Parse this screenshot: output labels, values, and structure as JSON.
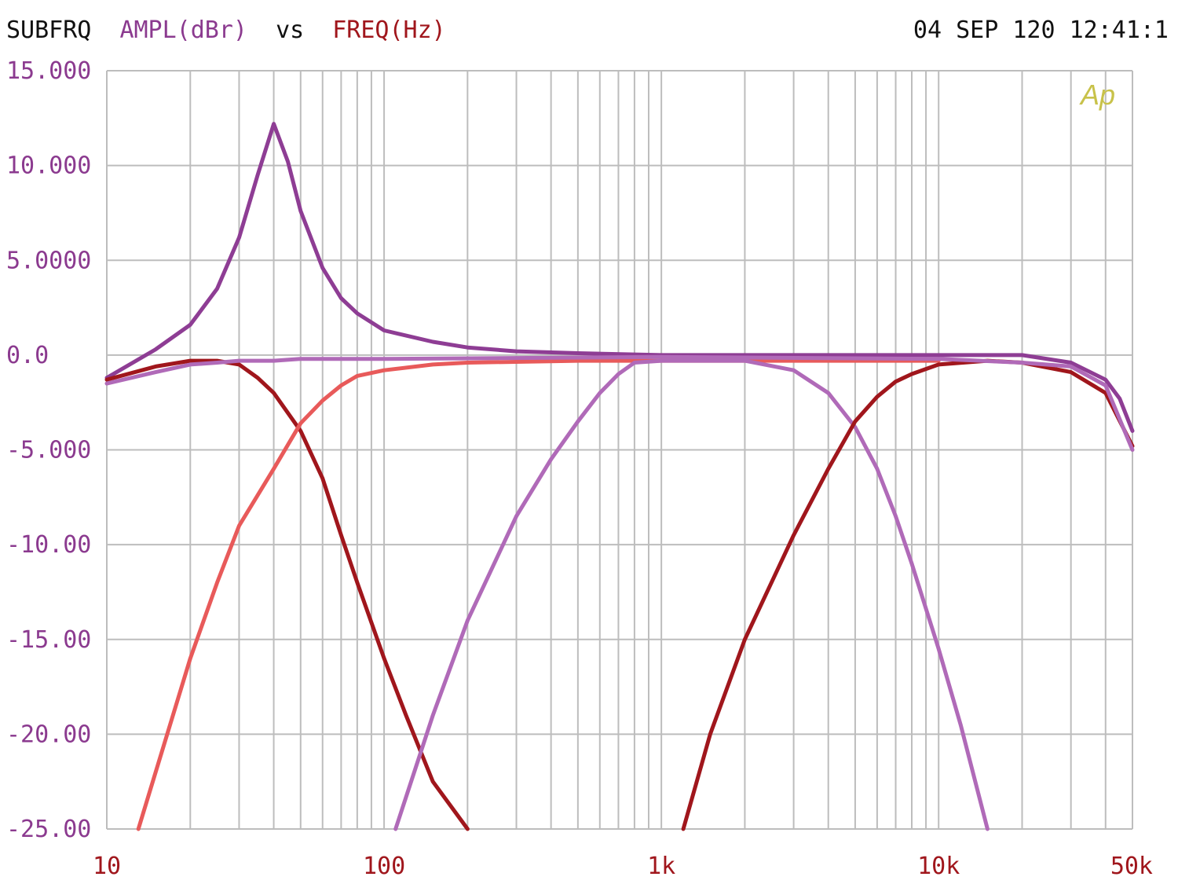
{
  "header": {
    "prefix": "SUBFRQ",
    "ylabel": "AMPL(dBr)",
    "vs": "vs",
    "xlabel": "FREQ(Hz)",
    "timestamp": "04 SEP 120 12:41:1"
  },
  "logo": "Ap",
  "colors": {
    "header_text": "#111111",
    "ylabel": "#8b3a8f",
    "xlabel": "#a0161c",
    "y_ticks": "#8b3a8f",
    "x_ticks": "#a0161c",
    "grid": "#bdbdbd",
    "logo": "#c8c24a"
  },
  "chart_data": {
    "type": "line",
    "x_scale": "log",
    "xlim": [
      10,
      50000
    ],
    "ylim": [
      -25,
      15
    ],
    "grid": true,
    "y_tick_values": [
      15,
      10,
      5,
      0,
      -5,
      -10,
      -15,
      -20,
      -25
    ],
    "y_tick_labels": [
      "15.000",
      "10.000",
      "5.0000",
      "0.0",
      "-5.000",
      "-10.00",
      "-15.00",
      "-20.00",
      "-25.00"
    ],
    "x_tick_values": [
      10,
      100,
      1000,
      10000,
      50000
    ],
    "x_tick_labels": [
      "10",
      "100",
      "1k",
      "10k",
      "50k"
    ],
    "series": [
      {
        "color": "#8e3d94",
        "x": [
          10,
          15,
          20,
          25,
          30,
          35,
          40,
          45,
          50,
          60,
          70,
          80,
          100,
          150,
          200,
          300,
          500,
          1000,
          5000,
          20000,
          30000,
          40000,
          45000,
          50000
        ],
        "y": [
          -1.2,
          0.3,
          1.6,
          3.5,
          6.2,
          9.5,
          12.2,
          10.2,
          7.6,
          4.6,
          3.0,
          2.2,
          1.3,
          0.7,
          0.4,
          0.2,
          0.1,
          0.0,
          0.0,
          0.0,
          -0.4,
          -1.3,
          -2.3,
          -4.0
        ]
      },
      {
        "color": "#a0161c",
        "x": [
          10,
          15,
          20,
          25,
          30,
          35,
          40,
          50,
          60,
          70,
          80,
          100,
          120,
          150,
          200
        ],
        "y": [
          -1.3,
          -0.6,
          -0.3,
          -0.3,
          -0.5,
          -1.2,
          -2.0,
          -4.0,
          -6.5,
          -9.5,
          -12.0,
          -16.0,
          -19.0,
          -22.5,
          -25.0
        ]
      },
      {
        "color": "#e85a5a",
        "x": [
          13,
          15,
          20,
          25,
          30,
          40,
          50,
          60,
          70,
          80,
          100,
          150,
          200,
          500,
          1000,
          10000
        ],
        "y": [
          -25.0,
          -22.0,
          -16.0,
          -12.0,
          -9.0,
          -6.0,
          -3.6,
          -2.4,
          -1.6,
          -1.1,
          -0.8,
          -0.5,
          -0.4,
          -0.3,
          -0.3,
          -0.3
        ]
      },
      {
        "color": "#b06ab8",
        "x": [
          110,
          150,
          200,
          300,
          400,
          500,
          600,
          700,
          800,
          1000,
          2000,
          3000,
          4000,
          5000,
          6000,
          7000,
          8000,
          10000,
          12000,
          15000
        ],
        "y": [
          -25.0,
          -19.0,
          -14.0,
          -8.5,
          -5.5,
          -3.5,
          -2.0,
          -1.0,
          -0.4,
          -0.3,
          -0.3,
          -0.8,
          -2.0,
          -3.8,
          -6.0,
          -8.5,
          -11.0,
          -15.5,
          -19.5,
          -25.0
        ]
      },
      {
        "color": "#a0161c",
        "x": [
          1200,
          1500,
          2000,
          3000,
          4000,
          5000,
          6000,
          7000,
          8000,
          10000,
          15000,
          20000,
          30000,
          40000,
          50000
        ],
        "y": [
          -25.0,
          -20.0,
          -15.0,
          -9.5,
          -6.0,
          -3.5,
          -2.2,
          -1.4,
          -1.0,
          -0.5,
          -0.3,
          -0.4,
          -0.9,
          -2.0,
          -4.8
        ]
      },
      {
        "color": "#b06ab8",
        "x": [
          10,
          15,
          20,
          25,
          30,
          40,
          50,
          100,
          1000,
          10000,
          20000,
          30000,
          40000,
          50000
        ],
        "y": [
          -1.5,
          -0.9,
          -0.5,
          -0.4,
          -0.3,
          -0.3,
          -0.2,
          -0.2,
          -0.1,
          -0.2,
          -0.4,
          -0.6,
          -1.6,
          -5.0
        ]
      }
    ]
  }
}
